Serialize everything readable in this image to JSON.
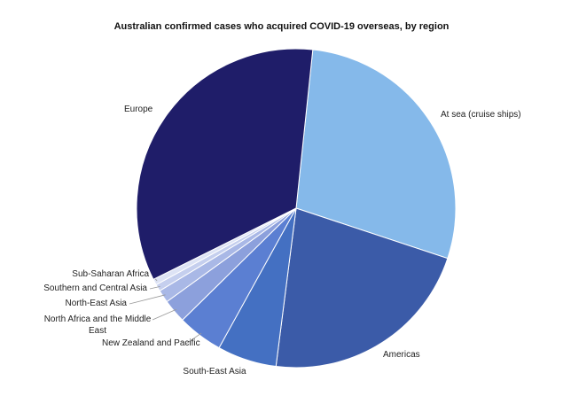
{
  "chart_data": {
    "type": "pie",
    "title": "Australian confirmed cases who acquired COVID-19 overseas, by region",
    "categories": [
      "At sea (cruise ships)",
      "Americas",
      "South-East Asia",
      "New Zealand and Pacific",
      "North Africa and the Middle East",
      "North-East Asia",
      "Southern and Central Asia",
      "Sub-Saharan Africa",
      "Europe"
    ],
    "values": [
      28.4,
      21.9,
      6,
      4.6,
      2.4,
      1.3,
      0.7,
      0.6,
      34
    ],
    "colors": [
      "#85b9ea",
      "#3b5ba8",
      "#4470c2",
      "#5b7fd2",
      "#8ca0dc",
      "#a9b8e6",
      "#c5cfee",
      "#dde3f5",
      "#1f1d69"
    ],
    "startangle": 6
  }
}
